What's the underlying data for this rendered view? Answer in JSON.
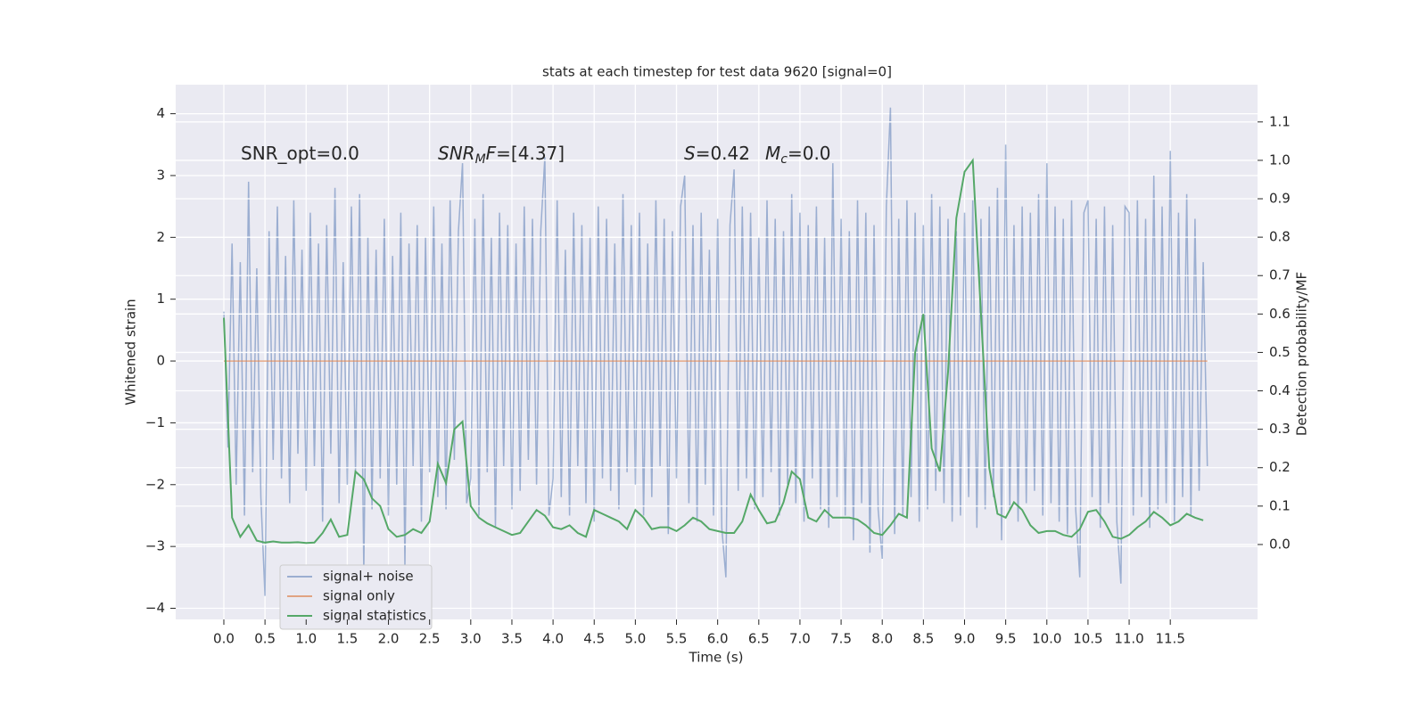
{
  "chart_data": {
    "type": "line",
    "title": "stats at each timestep for test data 9620 [signal=0]",
    "xlabel": "Time (s)",
    "ylabel": "Whitened strain",
    "y2label": "Detection probability/MF",
    "annotations": [
      {
        "parts": [
          {
            "text": "SNR_opt=0.0"
          }
        ]
      },
      {
        "parts": [
          {
            "text": "SNR",
            "italic": true
          },
          {
            "text": "M",
            "italic": true,
            "sub": true
          },
          {
            "text": "F",
            "italic": true
          },
          {
            "text": "=[4.37]"
          }
        ]
      },
      {
        "parts": [
          {
            "text": "S",
            "italic": true
          },
          {
            "text": "=0.42"
          }
        ]
      },
      {
        "parts": [
          {
            "text": "M",
            "italic": true
          },
          {
            "text": "c",
            "italic": true,
            "sub": true
          },
          {
            "text": "=0.0"
          }
        ]
      }
    ],
    "xlim": [
      -0.585,
      12.56
    ],
    "ylim": [
      -4.18,
      4.47
    ],
    "y2lim": [
      -0.195,
      1.197
    ],
    "xticks": [
      {
        "value": 0,
        "label": "0.0"
      },
      0.5,
      {
        "value": 1,
        "label": "1.0"
      },
      1.5,
      {
        "value": 2,
        "label": "2.0"
      },
      2.5,
      {
        "value": 3,
        "label": "3.0"
      },
      3.5,
      {
        "value": 4,
        "label": "4.0"
      },
      4.5,
      {
        "value": 5,
        "label": "5.0"
      },
      5.5,
      {
        "value": 6,
        "label": "6.0"
      },
      6.5,
      {
        "value": 7,
        "label": "7.0"
      },
      7.5,
      {
        "value": 8,
        "label": "8.0"
      },
      8.5,
      {
        "value": 9,
        "label": "9.0"
      },
      9.5,
      {
        "value": 10,
        "label": "10.0"
      },
      10.5,
      {
        "value": 11,
        "label": "11.0"
      },
      11.5
    ],
    "yticks": [
      {
        "value": -4,
        "label": "−4"
      },
      {
        "value": -3,
        "label": "−3"
      },
      {
        "value": -2,
        "label": "−2"
      },
      {
        "value": -1,
        "label": "−1"
      },
      0,
      1,
      2,
      3,
      4
    ],
    "y2ticks": [
      {
        "value": 0,
        "label": "0.0"
      },
      0.1,
      0.2,
      0.3,
      0.4,
      0.5,
      0.6,
      0.7,
      0.8,
      0.9,
      {
        "value": 1,
        "label": "1.0"
      },
      1.1
    ],
    "grid": true,
    "legend": "lower left",
    "series": [
      {
        "name": "signal+ noise",
        "color": "#4c72b0",
        "opacity": 0.5,
        "x": [
          0,
          0.05,
          0.1,
          0.15,
          0.2,
          0.25,
          0.3,
          0.35,
          0.4,
          0.45,
          0.5,
          0.55,
          0.6,
          0.65,
          0.7,
          0.75,
          0.8,
          0.85,
          0.9,
          0.95,
          1,
          1.05,
          1.1,
          1.15,
          1.2,
          1.25,
          1.3,
          1.35,
          1.4,
          1.45,
          1.5,
          1.55,
          1.6,
          1.65,
          1.7,
          1.75,
          1.8,
          1.85,
          1.9,
          1.95,
          2,
          2.05,
          2.1,
          2.15,
          2.2,
          2.25,
          2.3,
          2.35,
          2.4,
          2.45,
          2.5,
          2.55,
          2.6,
          2.65,
          2.7,
          2.75,
          2.8,
          2.85,
          2.9,
          2.95,
          3,
          3.05,
          3.1,
          3.15,
          3.2,
          3.25,
          3.3,
          3.35,
          3.4,
          3.45,
          3.5,
          3.55,
          3.6,
          3.65,
          3.7,
          3.75,
          3.8,
          3.85,
          3.9,
          3.95,
          4,
          4.05,
          4.1,
          4.15,
          4.2,
          4.25,
          4.3,
          4.35,
          4.4,
          4.45,
          4.5,
          4.55,
          4.6,
          4.65,
          4.7,
          4.75,
          4.8,
          4.85,
          4.9,
          4.95,
          5,
          5.05,
          5.1,
          5.15,
          5.2,
          5.25,
          5.3,
          5.35,
          5.4,
          5.45,
          5.5,
          5.55,
          5.6,
          5.65,
          5.7,
          5.75,
          5.8,
          5.85,
          5.9,
          5.95,
          6,
          6.05,
          6.1,
          6.15,
          6.2,
          6.25,
          6.3,
          6.35,
          6.4,
          6.45,
          6.5,
          6.55,
          6.6,
          6.65,
          6.7,
          6.75,
          6.8,
          6.85,
          6.9,
          6.95,
          7,
          7.05,
          7.1,
          7.15,
          7.2,
          7.25,
          7.3,
          7.35,
          7.4,
          7.45,
          7.5,
          7.55,
          7.6,
          7.65,
          7.7,
          7.75,
          7.8,
          7.85,
          7.9,
          7.95,
          8,
          8.05,
          8.1,
          8.15,
          8.2,
          8.25,
          8.3,
          8.35,
          8.4,
          8.45,
          8.5,
          8.55,
          8.6,
          8.65,
          8.7,
          8.75,
          8.8,
          8.85,
          8.9,
          8.95,
          9,
          9.05,
          9.1,
          9.15,
          9.2,
          9.25,
          9.3,
          9.35,
          9.4,
          9.45,
          9.5,
          9.55,
          9.6,
          9.65,
          9.7,
          9.75,
          9.8,
          9.85,
          9.9,
          9.95,
          10,
          10.05,
          10.1,
          10.15,
          10.2,
          10.25,
          10.3,
          10.35,
          10.4,
          10.45,
          10.5,
          10.55,
          10.6,
          10.65,
          10.7,
          10.75,
          10.8,
          10.85,
          10.9,
          10.95,
          11,
          11.05,
          11.1,
          11.15,
          11.2,
          11.25,
          11.3,
          11.35,
          11.4,
          11.45,
          11.5,
          11.55,
          11.6,
          11.65,
          11.7,
          11.75,
          11.8,
          11.85,
          11.9,
          11.95
        ],
        "values": [
          0.8,
          -1.4,
          1.9,
          -2.0,
          1.6,
          -2.5,
          2.9,
          -1.8,
          1.5,
          -2.2,
          -3.8,
          2.1,
          -1.6,
          2.5,
          -1.9,
          1.7,
          -2.3,
          2.6,
          -1.5,
          1.8,
          -2.1,
          2.4,
          -1.7,
          1.9,
          -2.6,
          2.2,
          -1.5,
          2.8,
          -2.3,
          1.6,
          -2.0,
          2.5,
          -1.8,
          2.7,
          -3.4,
          2.0,
          -2.4,
          1.8,
          -1.9,
          2.3,
          -2.5,
          1.7,
          -2.0,
          2.4,
          -3.3,
          1.9,
          -1.7,
          2.2,
          -2.6,
          2.0,
          -1.8,
          2.5,
          -2.2,
          1.9,
          -2.4,
          2.6,
          -1.6,
          2.1,
          3.2,
          -2.3,
          -1.9,
          2.3,
          -2.5,
          2.7,
          -1.8,
          2.0,
          -2.7,
          2.4,
          -1.7,
          2.2,
          -2.4,
          1.9,
          -2.1,
          2.5,
          -1.6,
          2.3,
          -2.0,
          2.1,
          3.3,
          -2.5,
          -1.9,
          2.6,
          -2.2,
          1.8,
          -2.5,
          2.4,
          -1.7,
          2.2,
          -2.3,
          2.0,
          -2.6,
          2.5,
          -1.9,
          2.3,
          -2.1,
          1.9,
          -2.4,
          2.7,
          -1.8,
          2.2,
          -2.0,
          2.4,
          -2.5,
          1.9,
          -2.2,
          2.6,
          -1.7,
          2.3,
          -2.8,
          2.1,
          -1.9,
          2.5,
          3.0,
          -2.3,
          2.2,
          -2.6,
          2.4,
          -2.0,
          1.8,
          -2.5,
          2.3,
          -2.7,
          -3.5,
          2.2,
          3.1,
          -2.1,
          2.5,
          -1.9,
          2.4,
          -2.4,
          2.0,
          -2.2,
          2.6,
          -1.8,
          2.3,
          -2.5,
          2.1,
          -2.0,
          2.7,
          -2.3,
          2.4,
          -2.6,
          2.2,
          -1.9,
          2.5,
          -2.4,
          2.0,
          -2.7,
          3.2,
          -2.2,
          2.3,
          -2.5,
          2.1,
          -2.9,
          2.6,
          -2.3,
          2.4,
          -3.1,
          2.2,
          -2.4,
          -3.2,
          2.5,
          4.1,
          -2.8,
          2.3,
          -2.5,
          2.6,
          -2.2,
          2.4,
          -2.6,
          2.2,
          -2.4,
          2.7,
          -2.1,
          2.5,
          -2.3,
          2.3,
          -2.6,
          2.1,
          -2.5,
          2.4,
          -2.2,
          2.6,
          -2.7,
          2.3,
          -2.4,
          2.5,
          -2.2,
          2.8,
          -2.9,
          3.5,
          -2.4,
          2.2,
          -2.6,
          2.5,
          -2.3,
          2.4,
          -2.1,
          2.7,
          -2.5,
          3.2,
          -2.3,
          2.5,
          -2.6,
          2.3,
          -2.8,
          2.6,
          -2.4,
          -3.5,
          2.4,
          2.6,
          -2.2,
          2.3,
          -2.7,
          2.5,
          -2.3,
          2.2,
          -2.6,
          -3.6,
          2.5,
          2.4,
          -2.5,
          2.6,
          -2.2,
          2.3,
          -2.7,
          3.0,
          -2.4,
          2.5,
          -2.3,
          3.4,
          -2.6,
          2.4,
          -2.2,
          2.7,
          -2.5,
          2.3,
          -2.1,
          1.6,
          -1.7
        ]
      },
      {
        "name": "signal only",
        "color": "#dd8452",
        "opacity": 0.7,
        "x": [
          0,
          11.95
        ],
        "values": [
          0,
          0
        ]
      },
      {
        "name": "signal statistics",
        "color": "#55a868",
        "axis": "y2",
        "x": [
          0,
          0.1,
          0.2,
          0.3,
          0.4,
          0.5,
          0.6,
          0.7,
          0.8,
          0.9,
          1,
          1.1,
          1.2,
          1.3,
          1.4,
          1.5,
          1.6,
          1.7,
          1.8,
          1.9,
          2,
          2.1,
          2.2,
          2.3,
          2.4,
          2.5,
          2.6,
          2.7,
          2.8,
          2.9,
          3,
          3.1,
          3.2,
          3.3,
          3.4,
          3.5,
          3.6,
          3.7,
          3.8,
          3.9,
          4,
          4.1,
          4.2,
          4.3,
          4.4,
          4.5,
          4.6,
          4.7,
          4.8,
          4.9,
          5,
          5.1,
          5.2,
          5.3,
          5.4,
          5.5,
          5.6,
          5.7,
          5.8,
          5.9,
          6,
          6.1,
          6.2,
          6.3,
          6.4,
          6.5,
          6.6,
          6.7,
          6.8,
          6.9,
          7,
          7.1,
          7.2,
          7.3,
          7.4,
          7.5,
          7.6,
          7.7,
          7.8,
          7.9,
          8,
          8.1,
          8.2,
          8.3,
          8.4,
          8.5,
          8.6,
          8.7,
          8.8,
          8.9,
          9,
          9.1,
          9.2,
          9.3,
          9.4,
          9.5,
          9.6,
          9.7,
          9.8,
          9.9,
          10,
          10.1,
          10.2,
          10.3,
          10.4,
          10.5,
          10.6,
          10.7,
          10.8,
          10.9,
          11,
          11.1,
          11.2,
          11.3,
          11.4,
          11.5,
          11.6,
          11.7,
          11.8,
          11.9
        ],
        "values": [
          0.59,
          0.07,
          0.02,
          0.05,
          0.01,
          0.005,
          0.008,
          0.005,
          0.005,
          0.006,
          0.004,
          0.005,
          0.03,
          0.065,
          0.02,
          0.025,
          0.19,
          0.17,
          0.12,
          0.1,
          0.04,
          0.02,
          0.025,
          0.04,
          0.03,
          0.06,
          0.21,
          0.16,
          0.3,
          0.32,
          0.1,
          0.07,
          0.055,
          0.045,
          0.035,
          0.025,
          0.03,
          0.06,
          0.09,
          0.075,
          0.045,
          0.04,
          0.05,
          0.03,
          0.02,
          0.09,
          0.08,
          0.07,
          0.06,
          0.04,
          0.09,
          0.07,
          0.04,
          0.045,
          0.045,
          0.035,
          0.05,
          0.07,
          0.06,
          0.04,
          0.035,
          0.03,
          0.03,
          0.06,
          0.13,
          0.09,
          0.055,
          0.06,
          0.11,
          0.19,
          0.17,
          0.07,
          0.06,
          0.09,
          0.07,
          0.07,
          0.07,
          0.065,
          0.05,
          0.03,
          0.025,
          0.05,
          0.08,
          0.07,
          0.5,
          0.6,
          0.25,
          0.19,
          0.45,
          0.85,
          0.97,
          1.0,
          0.6,
          0.2,
          0.08,
          0.07,
          0.11,
          0.09,
          0.05,
          0.03,
          0.035,
          0.035,
          0.025,
          0.02,
          0.04,
          0.085,
          0.09,
          0.06,
          0.02,
          0.015,
          0.025,
          0.045,
          0.06,
          0.085,
          0.07,
          0.05,
          0.06,
          0.08,
          0.07,
          0.063
        ]
      }
    ]
  }
}
